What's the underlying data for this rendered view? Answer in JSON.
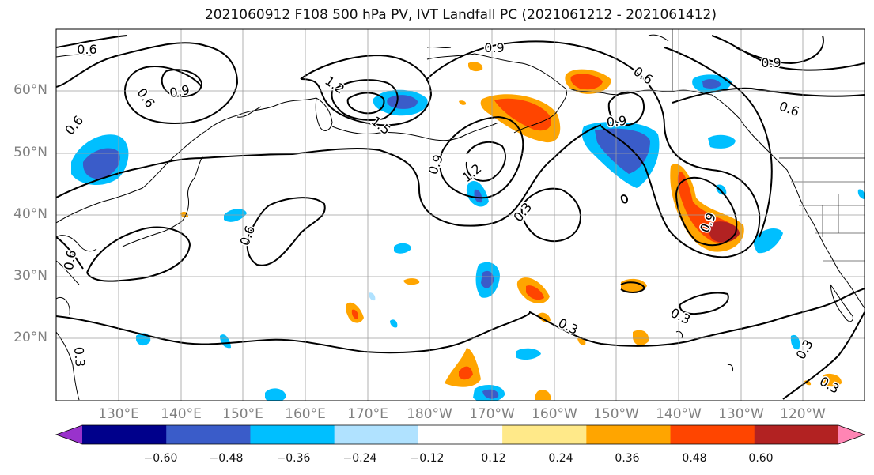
{
  "title": "2021060912 F108 500 hPa PV, IVT Landfall PC (2021061212 - 2021061412)",
  "lat_labels": [
    "60°N",
    "50°N",
    "40°N",
    "30°N",
    "20°N"
  ],
  "lon_labels": [
    "130°E",
    "140°E",
    "150°E",
    "160°E",
    "170°E",
    "180°W",
    "170°W",
    "160°W",
    "150°W",
    "140°W",
    "130°W",
    "120°W"
  ],
  "colorbar": {
    "colors": [
      "#9932cc",
      "#00008b",
      "#3a5cc9",
      "#00bfff",
      "#b0e2ff",
      "#ffffff",
      "#ffe989",
      "#ffa500",
      "#ff4500",
      "#b22222",
      "#ff85b4"
    ],
    "ticks": [
      "−0.60",
      "−0.48",
      "−0.36",
      "−0.24",
      "−0.12",
      "0.12",
      "0.24",
      "0.36",
      "0.48",
      "0.60"
    ]
  },
  "contour_labels": [
    "0.6",
    "0.6",
    "0.9",
    "1.2",
    "1.5",
    "0.9",
    "1.2",
    "0.9",
    "0.3",
    "0.6",
    "0.3",
    "0.9",
    "0.6",
    "0.6",
    "0.9",
    "0.9",
    "0.6",
    "0.3",
    "0.3",
    "0.3",
    "0.6",
    "0.3"
  ]
}
